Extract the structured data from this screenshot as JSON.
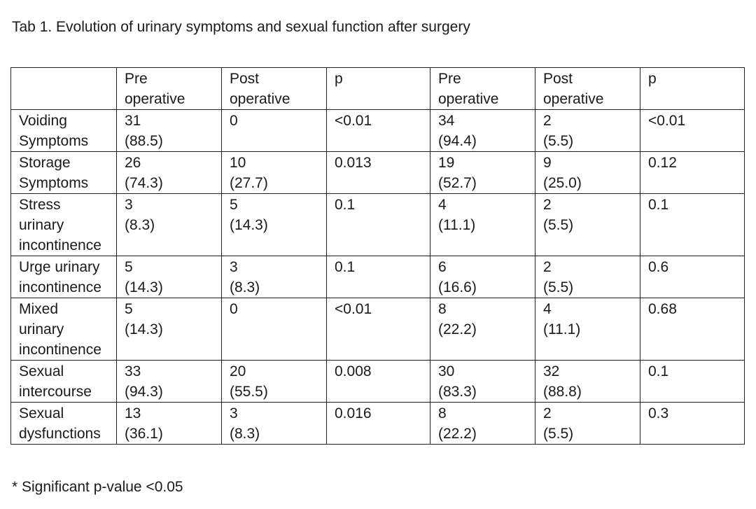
{
  "caption": "Tab 1. Evolution of urinary symptoms and sexual function after surgery",
  "header": [
    [
      "",
      ""
    ],
    [
      "Pre",
      "operative"
    ],
    [
      "Post",
      "operative"
    ],
    [
      "p"
    ],
    [
      "Pre",
      "operative"
    ],
    [
      "Post",
      "operative"
    ],
    [
      "p"
    ]
  ],
  "rows": [
    [
      [
        "Voiding",
        "Symptoms"
      ],
      [
        "31",
        "(88.5)"
      ],
      [
        "0"
      ],
      [
        "<0.01"
      ],
      [
        "34",
        "(94.4)"
      ],
      [
        "2",
        "(5.5)"
      ],
      [
        "<0.01"
      ]
    ],
    [
      [
        "Storage",
        "Symptoms"
      ],
      [
        "26",
        "(74.3)"
      ],
      [
        "10",
        "(27.7)"
      ],
      [
        "0.013"
      ],
      [
        "19",
        "(52.7)"
      ],
      [
        "9",
        "(25.0)"
      ],
      [
        "0.12"
      ]
    ],
    [
      [
        "Stress",
        "urinary",
        "incontinence"
      ],
      [
        "3",
        "(8.3)"
      ],
      [
        "5",
        "(14.3)"
      ],
      [
        "0.1"
      ],
      [
        "4",
        "(11.1)"
      ],
      [
        "2",
        "(5.5)"
      ],
      [
        "0.1"
      ]
    ],
    [
      [
        "Urge urinary",
        "incontinence"
      ],
      [
        "5",
        "(14.3)"
      ],
      [
        "3",
        "(8.3)"
      ],
      [
        "0.1"
      ],
      [
        "6",
        "(16.6)"
      ],
      [
        "2",
        "(5.5)"
      ],
      [
        "0.6"
      ]
    ],
    [
      [
        "Mixed",
        "urinary",
        "incontinence"
      ],
      [
        "5",
        "(14.3)"
      ],
      [
        "0"
      ],
      [
        "<0.01"
      ],
      [
        "8",
        "(22.2)"
      ],
      [
        "4",
        "(11.1)"
      ],
      [
        "0.68"
      ]
    ],
    [
      [
        "Sexual",
        "intercourse"
      ],
      [
        "33",
        "(94.3)"
      ],
      [
        "20",
        "(55.5)"
      ],
      [
        "0.008"
      ],
      [
        "30",
        "(83.3)"
      ],
      [
        "32",
        "(88.8)"
      ],
      [
        "0.1"
      ]
    ],
    [
      [
        "Sexual",
        "dysfunctions"
      ],
      [
        "13",
        "(36.1)"
      ],
      [
        "3",
        "(8.3)"
      ],
      [
        "0.016"
      ],
      [
        "8",
        "(22.2)"
      ],
      [
        "2",
        "(5.5)"
      ],
      [
        "0.3"
      ]
    ]
  ],
  "footnote": "* Significant p-value <0.05"
}
